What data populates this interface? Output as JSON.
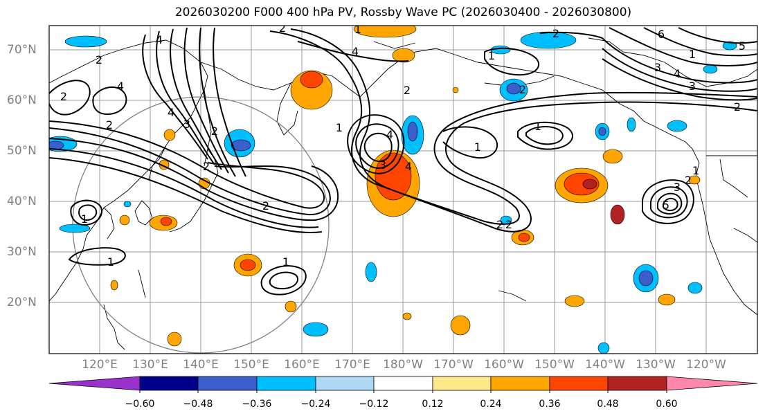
{
  "title": "2026030200 F000 400 hPa PV, Rossby Wave PC (2026030400 - 2026030800)",
  "lat_labels": [
    "70°N",
    "60°N",
    "50°N",
    "40°N",
    "30°N",
    "20°N"
  ],
  "lon_labels": [
    "120°E",
    "130°E",
    "140°E",
    "150°E",
    "160°E",
    "170°E",
    "180°W",
    "170°W",
    "160°W",
    "150°W",
    "140°W",
    "130°W",
    "120°W"
  ],
  "colorbar": {
    "ticks": [
      "−0.60",
      "−0.48",
      "−0.36",
      "−0.24",
      "−0.12",
      "0.12",
      "0.24",
      "0.36",
      "0.48",
      "0.60"
    ],
    "colors": [
      "#9932cc",
      "#00008b",
      "#3a5fcd",
      "#00bfff",
      "#add8f5",
      "#ffffff",
      "#ffe88a",
      "#ffa500",
      "#ff4500",
      "#b22222",
      "#ff88aa"
    ]
  },
  "contour_labels": [
    "2",
    "1",
    "2",
    "2",
    "2",
    "4",
    "1",
    "4",
    "2",
    "2",
    "2",
    "1",
    "6",
    "5",
    "4",
    "3",
    "2",
    "2",
    "4",
    "3",
    "3",
    "4",
    "3",
    "4",
    "1",
    "1",
    "2",
    "1",
    "5",
    "3",
    "2",
    "1",
    "4",
    "2",
    "1",
    "1",
    "1",
    "2",
    "2"
  ]
}
